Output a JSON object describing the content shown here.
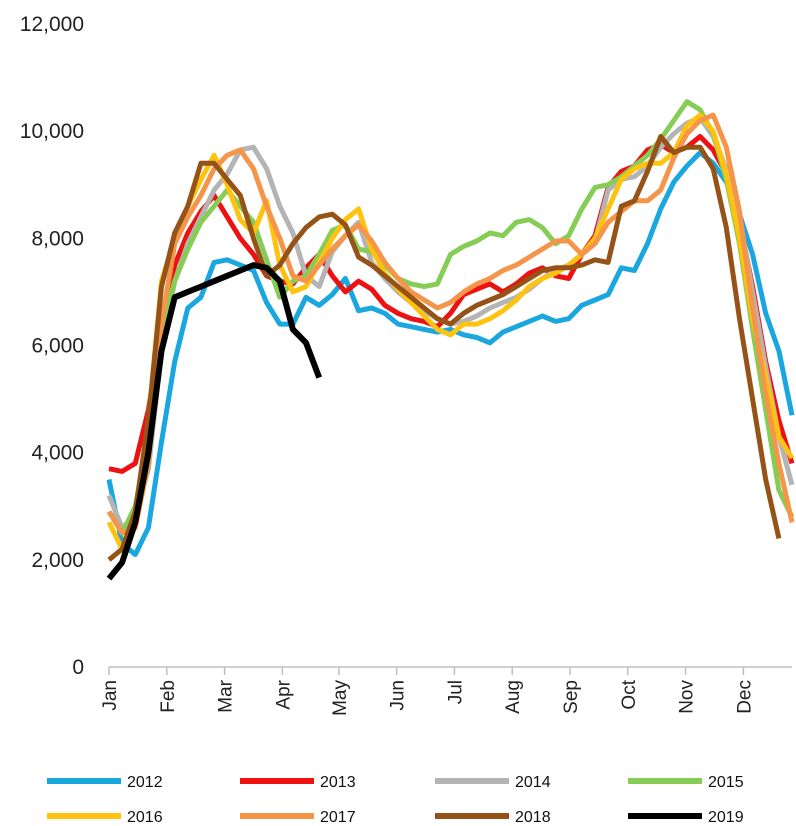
{
  "chart_data": {
    "type": "line",
    "title": "",
    "xlabel": "",
    "ylabel": "",
    "ylim": [
      0,
      12000
    ],
    "yticks": [
      0,
      2000,
      4000,
      6000,
      8000,
      10000,
      12000
    ],
    "ytick_labels": [
      "0",
      "2,000",
      "4,000",
      "6,000",
      "8,000",
      "10,000",
      "12,000"
    ],
    "x_unit": "week of year",
    "xlim": [
      1,
      53
    ],
    "month_ticks": [
      {
        "label": "Jan",
        "x": 1
      },
      {
        "label": "Feb",
        "x": 5.4
      },
      {
        "label": "Mar",
        "x": 9.8
      },
      {
        "label": "Apr",
        "x": 14.2
      },
      {
        "label": "May",
        "x": 18.5
      },
      {
        "label": "Jun",
        "x": 22.9
      },
      {
        "label": "Jul",
        "x": 27.3
      },
      {
        "label": "Aug",
        "x": 31.7
      },
      {
        "label": "Sep",
        "x": 36.1
      },
      {
        "label": "Oct",
        "x": 40.5
      },
      {
        "label": "Nov",
        "x": 44.9
      },
      {
        "label": "Dec",
        "x": 49.3
      }
    ],
    "grid": false,
    "legend_position": "bottom",
    "series": [
      {
        "name": "2012",
        "color": "#1aa7e0",
        "width": 5,
        "values": [
          3500,
          2300,
          2100,
          2600,
          4200,
          5700,
          6700,
          6900,
          7550,
          7600,
          7500,
          7400,
          6800,
          6400,
          6400,
          6900,
          6750,
          6950,
          7250,
          6650,
          6700,
          6600,
          6400,
          6350,
          6300,
          6250,
          6300,
          6200,
          6150,
          6050,
          6250,
          6350,
          6450,
          6550,
          6450,
          6500,
          6750,
          6850,
          6950,
          7450,
          7400,
          7900,
          8550,
          9050,
          9350,
          9600,
          9400,
          9050,
          8450,
          7700,
          6600,
          5900,
          4700
        ]
      },
      {
        "name": "2013",
        "color": "#ee1111",
        "width": 5,
        "values": [
          3700,
          3650,
          3800,
          4800,
          6300,
          7500,
          8100,
          8500,
          8800,
          8400,
          8000,
          7700,
          7300,
          7200,
          7150,
          7450,
          7700,
          7300,
          7000,
          7200,
          7050,
          6750,
          6600,
          6500,
          6450,
          6350,
          6600,
          6950,
          7050,
          7150,
          7000,
          7150,
          7350,
          7450,
          7300,
          7250,
          7700,
          8050,
          8950,
          9250,
          9350,
          9650,
          9750,
          9600,
          9700,
          9900,
          9650,
          9200,
          8300,
          7100,
          5700,
          4600,
          3800
        ]
      },
      {
        "name": "2014",
        "color": "#b4b4b4",
        "width": 5,
        "values": [
          3200,
          2600,
          2800,
          3700,
          5900,
          7200,
          7900,
          8400,
          8900,
          9200,
          9650,
          9700,
          9300,
          8600,
          8100,
          7300,
          7100,
          7750,
          8050,
          8300,
          7550,
          7250,
          7000,
          6800,
          6650,
          6500,
          6400,
          6450,
          6550,
          6700,
          6800,
          6900,
          7050,
          7250,
          7400,
          7500,
          7700,
          7950,
          8900,
          9100,
          9150,
          9350,
          9700,
          9950,
          10150,
          10250,
          9900,
          9300,
          8400,
          7000,
          5600,
          4300,
          3400
        ]
      },
      {
        "name": "2015",
        "color": "#86cd55",
        "width": 5,
        "values": [
          2900,
          2500,
          3000,
          4300,
          6300,
          7200,
          7800,
          8300,
          8600,
          8900,
          8600,
          8300,
          7600,
          6900,
          7200,
          7300,
          7700,
          8150,
          8250,
          7800,
          7750,
          7500,
          7250,
          7150,
          7100,
          7150,
          7700,
          7850,
          7950,
          8100,
          8050,
          8300,
          8350,
          8200,
          7900,
          8050,
          8550,
          8950,
          9000,
          9150,
          9350,
          9550,
          9850,
          10200,
          10550,
          10400,
          9950,
          9100,
          7900,
          6300,
          4800,
          3300,
          2800
        ]
      },
      {
        "name": "2016",
        "color": "#ffc20e",
        "width": 5,
        "values": [
          2700,
          2200,
          2800,
          4600,
          7200,
          8000,
          8600,
          9100,
          9550,
          9000,
          8350,
          8100,
          8700,
          7500,
          7000,
          7100,
          7550,
          8000,
          8350,
          8550,
          7800,
          7350,
          7050,
          6800,
          6550,
          6300,
          6200,
          6400,
          6400,
          6500,
          6650,
          6850,
          7100,
          7250,
          7350,
          7500,
          7700,
          8000,
          8550,
          9100,
          9300,
          9400,
          9400,
          9600,
          10100,
          10300,
          10000,
          9200,
          8000,
          6500,
          5400,
          4300,
          3900
        ]
      },
      {
        "name": "2017",
        "color": "#f4954a",
        "width": 5,
        "values": [
          2900,
          2500,
          2600,
          3800,
          6400,
          7900,
          8400,
          8800,
          9300,
          9550,
          9650,
          9300,
          8600,
          8000,
          7300,
          7200,
          7500,
          7800,
          8050,
          8250,
          7950,
          7550,
          7250,
          7000,
          6850,
          6700,
          6800,
          7000,
          7150,
          7250,
          7400,
          7500,
          7650,
          7800,
          7950,
          7950,
          7700,
          7900,
          8300,
          8500,
          8700,
          8700,
          8900,
          9500,
          9950,
          10200,
          10300,
          9700,
          8500,
          6700,
          5100,
          3800,
          2700
        ]
      },
      {
        "name": "2018",
        "color": "#955317",
        "width": 5,
        "values": [
          2000,
          2200,
          2900,
          4600,
          7100,
          8100,
          8600,
          9400,
          9400,
          9100,
          8800,
          8000,
          7300,
          7500,
          7900,
          8200,
          8400,
          8450,
          8250,
          7650,
          7500,
          7300,
          7100,
          6900,
          6700,
          6500,
          6400,
          6600,
          6750,
          6850,
          6950,
          7100,
          7250,
          7400,
          7450,
          7450,
          7500,
          7600,
          7550,
          8600,
          8700,
          9250,
          9900,
          9600,
          9700,
          9700,
          9300,
          8200,
          6500,
          5000,
          3500,
          2400
        ]
      },
      {
        "name": "2019",
        "color": "#000000",
        "width": 6,
        "values": [
          1650,
          1950,
          2700,
          4000,
          5900,
          6900,
          7000,
          7100,
          7200,
          7300,
          7400,
          7500,
          7450,
          7200,
          6300,
          6050,
          5400
        ]
      }
    ]
  }
}
